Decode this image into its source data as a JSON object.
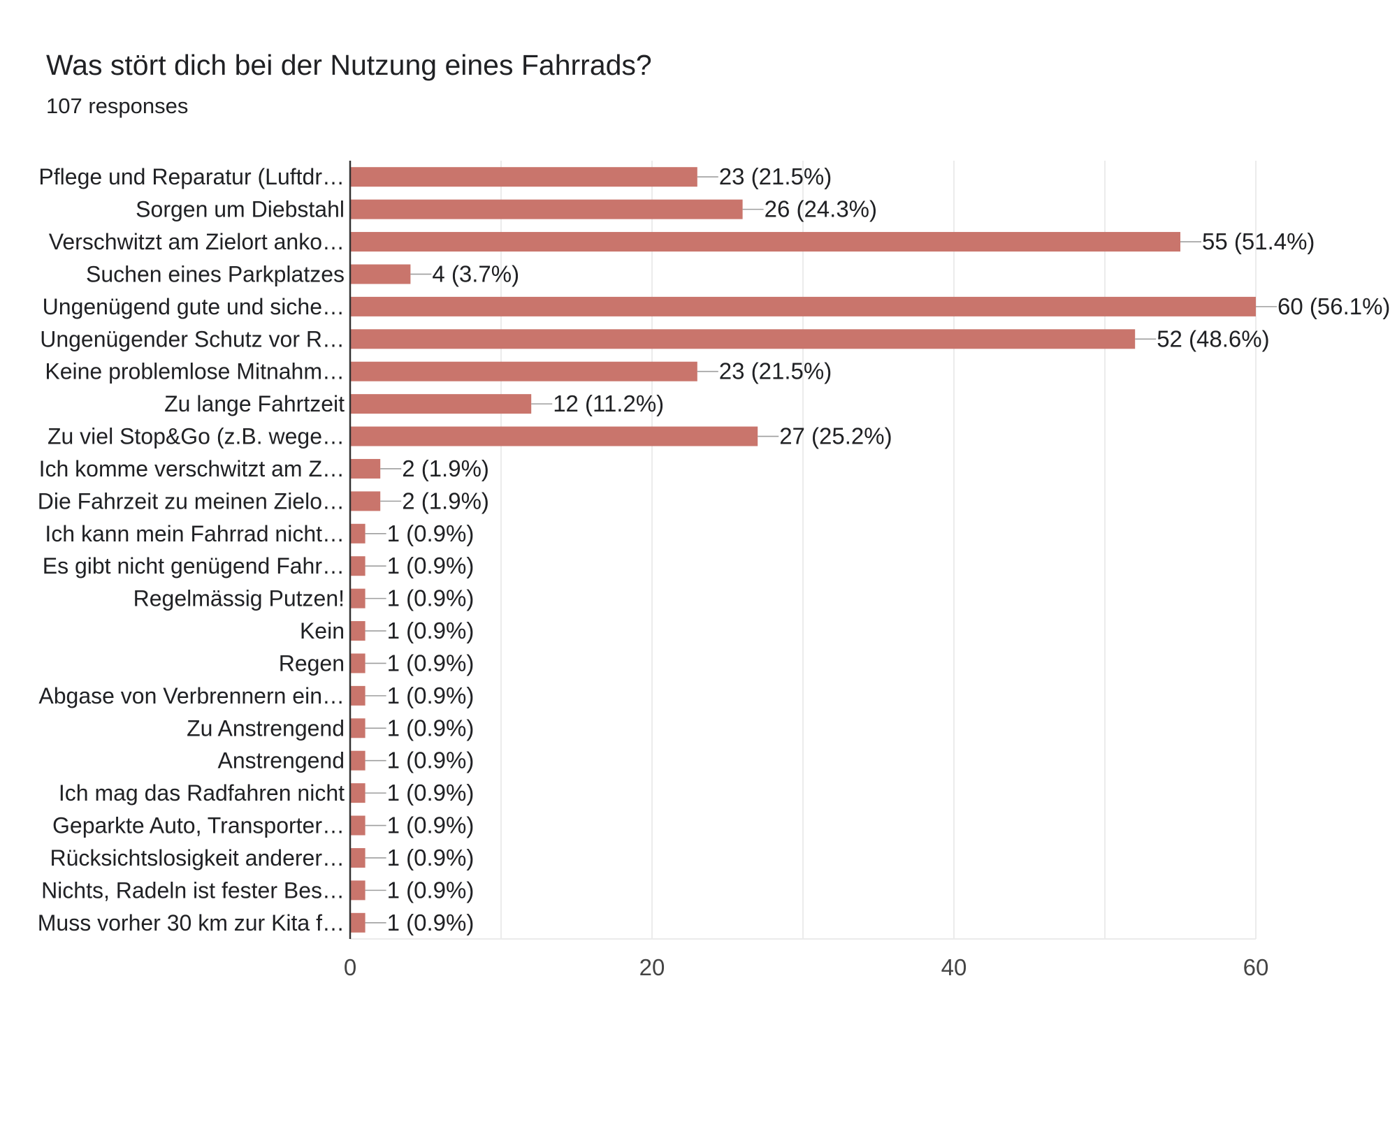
{
  "title": "Was stört dich bei der Nutzung eines Fahrrads?",
  "subtitle": "107 responses",
  "colors": {
    "bar": "#c9756c",
    "grid": "#ebebeb",
    "axis": "#333333",
    "connector": "#9e9e9e",
    "text": "#202124",
    "tick_text": "#444444"
  },
  "chart_data": {
    "type": "bar",
    "orientation": "horizontal",
    "title": "Was stört dich bei der Nutzung eines Fahrrads?",
    "subtitle": "107 responses",
    "xlabel": "",
    "ylabel": "",
    "xlim": [
      0,
      60
    ],
    "xticks": [
      0,
      20,
      40,
      60
    ],
    "grid_step": 10,
    "grid": true,
    "categories": [
      "Pflege und Reparatur (Luftdr…",
      "Sorgen um Diebstahl",
      "Verschwitzt am Zielort anko…",
      "Suchen eines Parkplatzes",
      "Ungenügend gute und siche…",
      "Ungenügender Schutz vor R…",
      "Keine problemlose Mitnahm…",
      "Zu lange Fahrtzeit",
      "Zu viel Stop&Go (z.B. wege…",
      "Ich komme verschwitzt am Z…",
      "Die Fahrzeit zu meinen Zielo…",
      "Ich kann mein Fahrrad nicht…",
      "Es gibt nicht genügend Fahr…",
      "Regelmässig Putzen!",
      "Kein",
      "Regen",
      "Abgase von Verbrennern ein…",
      "Zu Anstrengend",
      "Anstrengend",
      "Ich mag das Radfahren nicht",
      "Geparkte Auto, Transporter…",
      "Rücksichtslosigkeit anderer…",
      "Nichts, Radeln ist fester Bes…",
      "Muss vorher 30 km zur Kita f…"
    ],
    "values": [
      23,
      26,
      55,
      4,
      60,
      52,
      23,
      12,
      27,
      2,
      2,
      1,
      1,
      1,
      1,
      1,
      1,
      1,
      1,
      1,
      1,
      1,
      1,
      1
    ],
    "data_labels": [
      "23 (21.5%)",
      "26 (24.3%)",
      "55 (51.4%)",
      "4 (3.7%)",
      "60 (56.1%)",
      "52 (48.6%)",
      "23 (21.5%)",
      "12 (11.2%)",
      "27 (25.2%)",
      "2 (1.9%)",
      "2 (1.9%)",
      "1 (0.9%)",
      "1 (0.9%)",
      "1 (0.9%)",
      "1 (0.9%)",
      "1 (0.9%)",
      "1 (0.9%)",
      "1 (0.9%)",
      "1 (0.9%)",
      "1 (0.9%)",
      "1 (0.9%)",
      "1 (0.9%)",
      "1 (0.9%)",
      "1 (0.9%)"
    ]
  }
}
